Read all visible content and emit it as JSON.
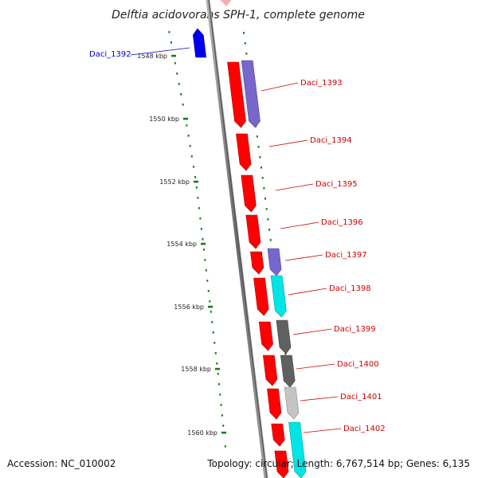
{
  "title": "Delftia acidovorans SPH-1, complete genome",
  "footer": {
    "accession": "Accession: NC_010002",
    "summary": "Topology: circular; Length: 6,767,514 bp; Genes: 6,135"
  },
  "ruler": {
    "ticks": [
      "1548 kbp",
      "1550 kbp",
      "1552 kbp",
      "1554 kbp",
      "1556 kbp",
      "1558 kbp",
      "1560 kbp"
    ]
  },
  "colors": {
    "backbone": "#808080",
    "tick": "#1a7a1a",
    "red": "#ff0000",
    "blue": "#0000ee",
    "violet": "#7766cc",
    "cyan": "#00e5e5",
    "dark_gray": "#606060",
    "light_gray": "#c4c4c4",
    "label_red": "#cc0000",
    "label_blue": "#0000cc"
  },
  "genes": [
    {
      "label": "Daci_1392",
      "strand": "reverse",
      "color": "blue"
    },
    {
      "label": "Daci_1393",
      "strand": "forward",
      "color": "violet"
    },
    {
      "label": "Daci_1394",
      "strand": "forward",
      "color": "red"
    },
    {
      "label": "Daci_1395",
      "strand": "forward",
      "color": "red"
    },
    {
      "label": "Daci_1396",
      "strand": "forward",
      "color": "red"
    },
    {
      "label": "Daci_1397",
      "strand": "forward",
      "color": "violet"
    },
    {
      "label": "Daci_1398",
      "strand": "forward",
      "color": "cyan"
    },
    {
      "label": "Daci_1399",
      "strand": "forward",
      "color": "dark_gray"
    },
    {
      "label": "Daci_1400",
      "strand": "forward",
      "color": "dark_gray"
    },
    {
      "label": "Daci_1401",
      "strand": "forward",
      "color": "light_gray"
    },
    {
      "label": "Daci_1402",
      "strand": "forward",
      "color": "cyan"
    }
  ]
}
